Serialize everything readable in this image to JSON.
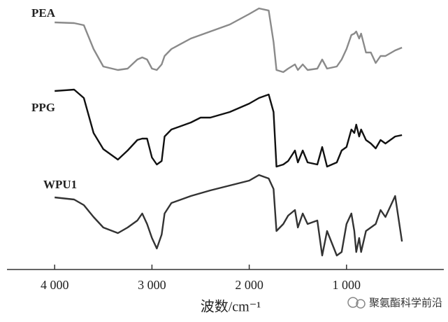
{
  "chart_data": {
    "type": "line",
    "xlabel": "波数/cm⁻¹",
    "watermark": "聚氨酯科学前沿",
    "x": [
      4000,
      3800,
      3700,
      3600,
      3500,
      3350,
      3250,
      3150,
      3100,
      3050,
      3000,
      2950,
      2900,
      2870,
      2800,
      2600,
      2500,
      2400,
      2200,
      2000,
      1900,
      1800,
      1750,
      1720,
      1650,
      1600,
      1530,
      1500,
      1450,
      1400,
      1300,
      1250,
      1200,
      1100,
      1050,
      1000,
      950,
      920,
      900,
      870,
      850,
      800,
      750,
      700,
      650,
      600,
      500,
      430
    ],
    "series": [
      {
        "name": "PEA",
        "color": "#8a8a8a",
        "values": [
          353,
          352,
          349,
          315,
          290,
          285,
          287,
          300,
          303,
          300,
          287,
          285,
          293,
          305,
          315,
          330,
          335,
          340,
          350,
          365,
          373,
          370,
          325,
          285,
          282,
          287,
          293,
          285,
          293,
          285,
          287,
          300,
          287,
          290,
          300,
          315,
          335,
          337,
          340,
          330,
          337,
          310,
          310,
          295,
          305,
          305,
          313,
          317
        ]
      },
      {
        "name": "PPG",
        "color": "#111111",
        "values": [
          255,
          257,
          245,
          195,
          172,
          157,
          170,
          185,
          187,
          187,
          160,
          150,
          155,
          190,
          200,
          210,
          217,
          217,
          225,
          237,
          245,
          250,
          225,
          147,
          150,
          155,
          170,
          153,
          170,
          153,
          150,
          175,
          147,
          153,
          170,
          175,
          200,
          195,
          207,
          190,
          200,
          185,
          180,
          173,
          185,
          180,
          190,
          192
        ]
      },
      {
        "name": "WPU1",
        "color": "#333333",
        "values": [
          103,
          100,
          92,
          75,
          60,
          52,
          60,
          70,
          80,
          65,
          45,
          30,
          50,
          80,
          95,
          105,
          109,
          113,
          120,
          127,
          135,
          130,
          115,
          55,
          65,
          77,
          85,
          60,
          80,
          65,
          70,
          20,
          55,
          20,
          25,
          65,
          80,
          55,
          25,
          45,
          25,
          55,
          60,
          65,
          85,
          75,
          105,
          40
        ]
      }
    ],
    "xlim": [
      4490,
      0
    ],
    "ylim": [
      0,
      375
    ],
    "xticks": [
      {
        "value": 4000,
        "label": "4 000"
      },
      {
        "value": 3000,
        "label": "3 000"
      },
      {
        "value": 2000,
        "label": "2 000"
      },
      {
        "value": 1000,
        "label": "1 000"
      }
    ]
  }
}
